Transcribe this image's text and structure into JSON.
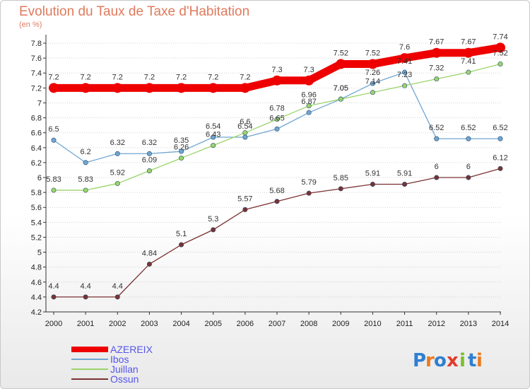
{
  "title": "Evolution du Taux de Taxe d'Habitation",
  "subtitle": "(en %)",
  "brand": {
    "letters": [
      "P",
      "r",
      "o",
      "x",
      "i",
      "t",
      "i"
    ],
    "colors": [
      "#2f7fd1",
      "#ec7a1f",
      "#2f7fd1",
      "#e23b2c",
      "#7bbf2a",
      "#2f7fd1",
      "#ec7a1f"
    ]
  },
  "chart_data": {
    "type": "line",
    "x": [
      "2000",
      "2001",
      "2002",
      "2003",
      "2004",
      "2005",
      "2006",
      "2007",
      "2008",
      "2009",
      "2010",
      "2011",
      "2012",
      "2013",
      "2014"
    ],
    "ylim": [
      4.2,
      7.8
    ],
    "yticks": [
      "4.2",
      "4.4",
      "4.6",
      "4.8",
      "5",
      "5.2",
      "5.4",
      "5.6",
      "5.8",
      "6",
      "6.2",
      "6.4",
      "6.6",
      "6.8",
      "7",
      "7.2",
      "7.4",
      "7.6",
      "7.8"
    ],
    "grid": "horizontal",
    "legend_position": "bottom-left",
    "series": [
      {
        "name": "AZEREIX",
        "color": "#ee0000",
        "legend_color": "#5555ee",
        "values": [
          7.2,
          7.2,
          7.2,
          7.2,
          7.2,
          7.2,
          7.2,
          7.3,
          7.3,
          7.52,
          7.52,
          7.6,
          7.67,
          7.67,
          7.74
        ],
        "labels": [
          "7.2",
          "7.2",
          "7.2",
          "7.2",
          "7.2",
          "7.2",
          "7.2",
          "7.3",
          "7.3",
          "7.52",
          "7.52",
          "7.6",
          "7.67",
          "7.67",
          "7.74"
        ]
      },
      {
        "name": "Ibos",
        "color": "#6fa6d2",
        "legend_color": "#5555ee",
        "values": [
          6.5,
          6.2,
          6.32,
          6.32,
          6.35,
          6.54,
          6.54,
          6.65,
          6.87,
          7.05,
          7.26,
          7.41,
          6.52,
          6.52,
          6.52
        ],
        "labels": [
          "6.5",
          "6.2",
          "6.32",
          "6.32",
          "6.35",
          "6.54",
          "6.54",
          "6.65",
          "6.87",
          "7.05",
          "7.26",
          "7.41",
          "6.52",
          "6.52",
          "6.52"
        ]
      },
      {
        "name": "Juillan",
        "color": "#9ad46b",
        "legend_color": "#5555ee",
        "values": [
          5.83,
          5.83,
          5.92,
          6.09,
          6.26,
          6.43,
          6.6,
          6.78,
          6.96,
          7.05,
          7.14,
          7.23,
          7.32,
          7.41,
          7.52
        ],
        "labels": [
          "5.83",
          "5.83",
          "5.92",
          "6.09",
          "6.26",
          "6.43",
          "6.6",
          "6.78",
          "6.96",
          "7.05",
          "7.14",
          "7.23",
          "7.32",
          "7.41",
          "7.52"
        ]
      },
      {
        "name": "Ossun",
        "color": "#7a3232",
        "legend_color": "#5555ee",
        "values": [
          4.4,
          4.4,
          4.4,
          4.84,
          5.1,
          5.3,
          5.57,
          5.68,
          5.79,
          5.85,
          5.91,
          5.91,
          6,
          6,
          6.12
        ],
        "labels": [
          "4.4",
          "4.4",
          "4.4",
          "4.84",
          "5.1",
          "5.3",
          "5.57",
          "5.68",
          "5.79",
          "5.85",
          "5.91",
          "5.91",
          "6",
          "6",
          "6.12"
        ]
      }
    ]
  }
}
